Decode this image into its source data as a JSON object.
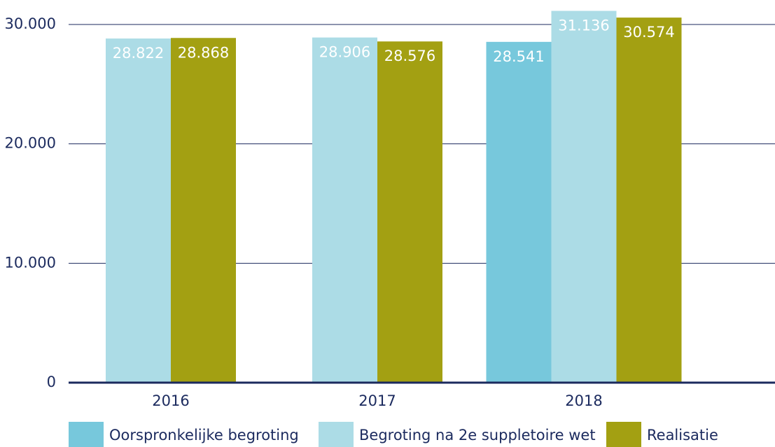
{
  "chart_data": {
    "type": "bar",
    "categories": [
      "2016",
      "2017",
      "2018"
    ],
    "series": [
      {
        "name": "Oorspronkelijke begroting",
        "color": "#77c8dc",
        "values": [
          null,
          null,
          28541
        ],
        "value_labels": [
          null,
          null,
          "28.541"
        ]
      },
      {
        "name": "Begroting na 2e suppletoire wet",
        "color": "#acdce6",
        "values": [
          28822,
          28906,
          31136
        ],
        "value_labels": [
          "28.822",
          "28.906",
          "31.136"
        ]
      },
      {
        "name": "Realisatie",
        "color": "#a3a012",
        "values": [
          28868,
          28576,
          30574
        ],
        "value_labels": [
          "28.868",
          "28.576",
          "30.574"
        ]
      }
    ],
    "ylim": [
      0,
      32000
    ],
    "yticks": [
      0,
      {
        "value": 10000,
        "label": "10.000"
      },
      {
        "value": 20000,
        "label": "20.000"
      },
      {
        "value": 30000,
        "label": "30.000"
      }
    ],
    "grid": true
  }
}
